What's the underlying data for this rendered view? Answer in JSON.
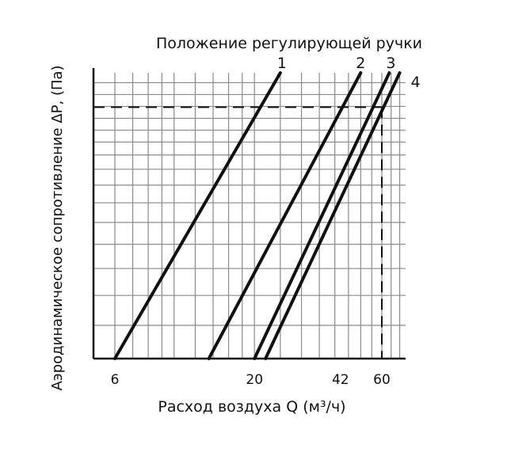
{
  "chart_data": {
    "type": "line",
    "title": "Положение регулирующей ручки",
    "xlabel": "Расход воздуха Q (м³/ч)",
    "ylabel": "Аэродинамическое сопротивление ΔP, (Па)",
    "x_ticks": [
      6,
      20,
      42,
      60
    ],
    "log_x": true,
    "grid": true,
    "series": [
      {
        "name": "1",
        "points": [
          [
            6,
            0
          ],
          [
            25,
            100
          ]
        ]
      },
      {
        "name": "2",
        "points": [
          [
            13.5,
            0
          ],
          [
            50,
            100
          ]
        ]
      },
      {
        "name": "3",
        "points": [
          [
            20,
            0
          ],
          [
            64,
            100
          ]
        ]
      },
      {
        "name": "4",
        "points": [
          [
            22,
            0
          ],
          [
            70,
            100
          ]
        ]
      }
    ],
    "reference_line": {
      "y": 88,
      "x": 60,
      "style": "dashed"
    },
    "colors": {
      "lines": "#111111",
      "grid": "#8a8a8a"
    }
  }
}
